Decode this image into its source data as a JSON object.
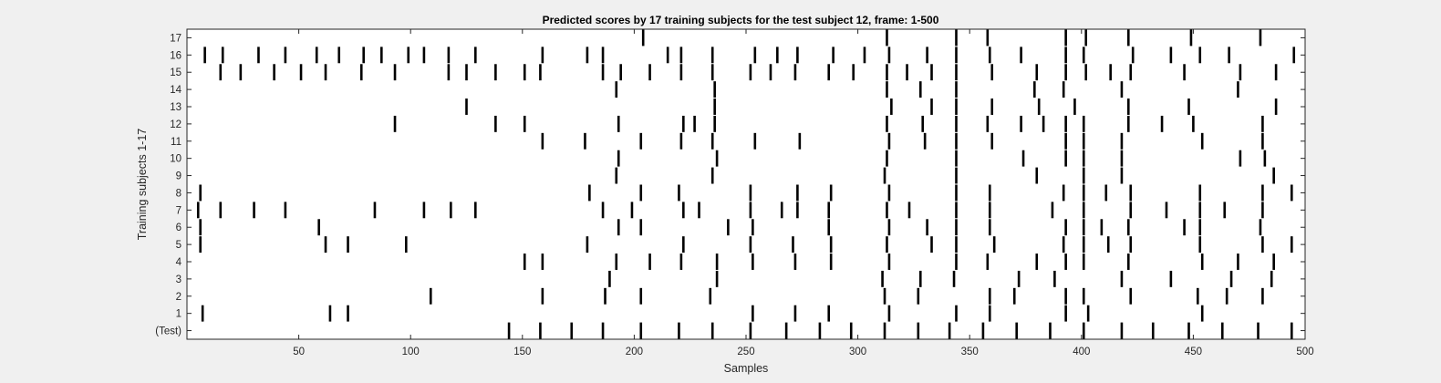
{
  "chart_data": {
    "type": "raster",
    "title": "Predicted scores by 17 training subjects for the test subject 12, frame: 1-500",
    "xlabel": "Samples",
    "ylabel": "Training subjects 1-17",
    "xlim": [
      0,
      500
    ],
    "xticks": [
      50,
      100,
      150,
      200,
      250,
      300,
      350,
      400,
      450,
      500
    ],
    "yticks": [
      "(Test)",
      "1",
      "2",
      "3",
      "4",
      "5",
      "6",
      "7",
      "8",
      "9",
      "10",
      "11",
      "12",
      "13",
      "14",
      "15",
      "16",
      "17"
    ],
    "grid": false,
    "background": "#ffffff",
    "figure_background": "#f0f0f0",
    "mark_color": "#000000",
    "series": [
      {
        "name": "(Test)",
        "events": [
          144,
          158,
          172,
          186,
          203,
          220,
          235,
          252,
          268,
          283,
          297,
          312,
          327,
          341,
          356,
          371,
          386,
          401,
          418,
          432,
          448,
          463,
          479,
          494
        ]
      },
      {
        "name": "1",
        "events": [
          7,
          64,
          72,
          253,
          272,
          287,
          314,
          344,
          359,
          393,
          403,
          454
        ]
      },
      {
        "name": "2",
        "events": [
          109,
          159,
          187,
          203,
          234,
          312,
          327,
          359,
          370,
          393,
          401,
          422,
          452,
          465,
          481
        ]
      },
      {
        "name": "3",
        "events": [
          189,
          237,
          311,
          328,
          343,
          372,
          388,
          418,
          440,
          467,
          485
        ]
      },
      {
        "name": "4",
        "events": [
          151,
          159,
          192,
          207,
          221,
          237,
          253,
          272,
          288,
          314,
          344,
          358,
          380,
          393,
          401,
          421,
          454,
          470,
          486
        ]
      },
      {
        "name": "5",
        "events": [
          6,
          62,
          72,
          98,
          179,
          222,
          252,
          271,
          288,
          313,
          333,
          344,
          361,
          392,
          401,
          412,
          422,
          453,
          481,
          494
        ]
      },
      {
        "name": "6",
        "events": [
          6,
          59,
          193,
          203,
          242,
          253,
          287,
          314,
          331,
          344,
          359,
          393,
          401,
          409,
          421,
          446,
          453,
          480
        ]
      },
      {
        "name": "7",
        "events": [
          5,
          15,
          30,
          44,
          84,
          106,
          118,
          129,
          186,
          199,
          222,
          229,
          252,
          266,
          273,
          287,
          313,
          323,
          344,
          359,
          387,
          401,
          422,
          438,
          453,
          464,
          481
        ]
      },
      {
        "name": "8",
        "events": [
          6,
          180,
          203,
          220,
          252,
          273,
          288,
          314,
          344,
          359,
          392,
          401,
          411,
          422,
          453,
          481,
          494
        ]
      },
      {
        "name": "9",
        "events": [
          192,
          235,
          312,
          344,
          380,
          401,
          418,
          486
        ]
      },
      {
        "name": "10",
        "events": [
          193,
          237,
          313,
          344,
          374,
          393,
          401,
          418,
          471,
          482
        ]
      },
      {
        "name": "11",
        "events": [
          159,
          178,
          203,
          221,
          235,
          254,
          274,
          314,
          330,
          344,
          360,
          393,
          401,
          418,
          454,
          481
        ]
      },
      {
        "name": "12",
        "events": [
          93,
          138,
          151,
          193,
          222,
          227,
          236,
          313,
          329,
          344,
          358,
          373,
          383,
          393,
          401,
          421,
          436,
          450,
          481
        ]
      },
      {
        "name": "13",
        "events": [
          125,
          236,
          315,
          333,
          344,
          360,
          381,
          397,
          421,
          448,
          487
        ]
      },
      {
        "name": "14",
        "events": [
          192,
          236,
          313,
          328,
          344,
          379,
          392,
          418,
          470
        ]
      },
      {
        "name": "15",
        "events": [
          15,
          24,
          39,
          51,
          62,
          78,
          93,
          117,
          125,
          138,
          151,
          158,
          186,
          194,
          207,
          221,
          235,
          252,
          261,
          272,
          287,
          298,
          313,
          322,
          333,
          344,
          360,
          380,
          393,
          402,
          413,
          422,
          446,
          471,
          487
        ]
      },
      {
        "name": "16",
        "events": [
          8,
          16,
          32,
          44,
          58,
          68,
          79,
          87,
          99,
          106,
          117,
          129,
          159,
          179,
          186,
          215,
          221,
          235,
          254,
          264,
          273,
          289,
          303,
          314,
          331,
          344,
          359,
          373,
          393,
          401,
          423,
          440,
          453,
          466,
          495
        ]
      },
      {
        "name": "17",
        "events": [
          204,
          313,
          344,
          358,
          393,
          402,
          421,
          449,
          480
        ]
      }
    ]
  }
}
